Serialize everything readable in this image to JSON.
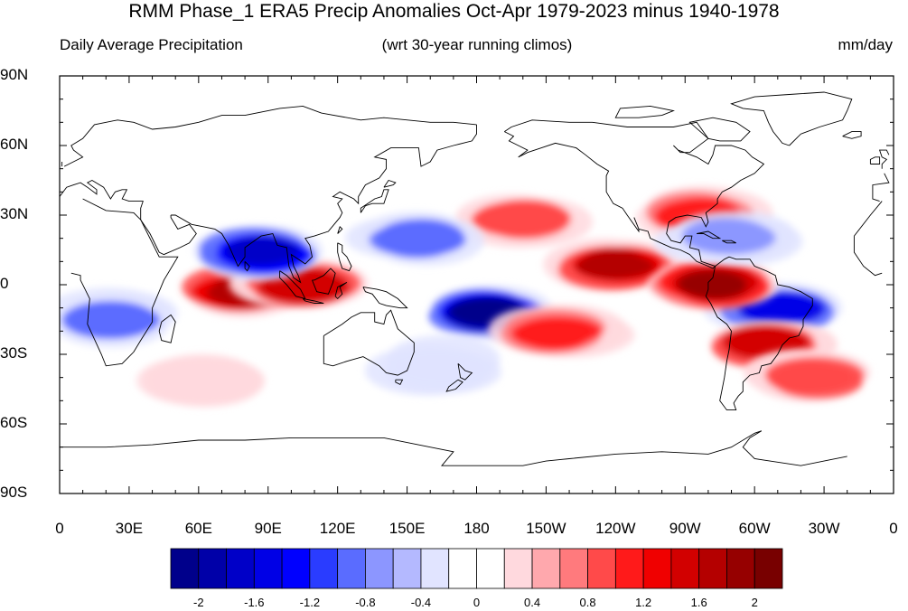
{
  "title": "RMM Phase_1 ERA5 Precip Anomalies Oct-Apr 1979-2023 minus 1940-1978",
  "subtitle_left": "Daily Average Precipitation",
  "subtitle_center": "(wrt 30-year running climos)",
  "subtitle_right": "mm/day",
  "y_labels": [
    "90N",
    "60N",
    "30N",
    "0",
    "30S",
    "60S",
    "90S"
  ],
  "x_labels": [
    "0",
    "30E",
    "60E",
    "90E",
    "120E",
    "150E",
    "180",
    "150W",
    "120W",
    "90W",
    "60W",
    "30W",
    "0"
  ],
  "colorbar": {
    "labels": [
      "-2",
      "-1.6",
      "-1.2",
      "-0.8",
      "-0.4",
      "0",
      "0.4",
      "0.8",
      "1.2",
      "1.6",
      "2"
    ],
    "colors": [
      "#00008b",
      "#0000a8",
      "#0000c8",
      "#0000e6",
      "#0000ff",
      "#2a3cff",
      "#5a6cff",
      "#8c96ff",
      "#b4b9ff",
      "#e1e4ff",
      "#ffffff",
      "#ffffff",
      "#ffd9de",
      "#ffa8ad",
      "#ff7a7d",
      "#ff4a4a",
      "#ff1a1a",
      "#f00000",
      "#d20000",
      "#b40000",
      "#960000",
      "#780000"
    ]
  },
  "map": {
    "projection": "cylindrical-equidistant",
    "lon_range": [
      0,
      360
    ],
    "lat_range": [
      -90,
      90
    ],
    "field": "precipitation anomaly",
    "anomaly_features": [
      {
        "name": "Indian Ocean positive",
        "lon": 80,
        "lat": -3,
        "sign": 1,
        "level": 1.6
      },
      {
        "name": "Maritime Continent positive",
        "lon": 105,
        "lat": 0,
        "sign": 1,
        "level": 1.4
      },
      {
        "name": "Bay of Bengal negative",
        "lon": 88,
        "lat": 14,
        "sign": -1,
        "level": 1.6
      },
      {
        "name": "South Pacific negative",
        "lon": 185,
        "lat": -12,
        "sign": -1,
        "level": 2.0
      },
      {
        "name": "East Pacific ITCZ positive",
        "lon": 240,
        "lat": 8,
        "sign": 1,
        "level": 1.6
      },
      {
        "name": "Brazil negative",
        "lon": 310,
        "lat": -10,
        "sign": -1,
        "level": 1.4
      },
      {
        "name": "Southeast South America positive",
        "lon": 305,
        "lat": -25,
        "sign": 1,
        "level": 1.4
      },
      {
        "name": "Colombia coast positive",
        "lon": 283,
        "lat": 0,
        "sign": 1,
        "level": 1.8
      },
      {
        "name": "North Pacific positive",
        "lon": 200,
        "lat": 28,
        "sign": 1,
        "level": 0.8
      },
      {
        "name": "NW Pacific negative",
        "lon": 155,
        "lat": 20,
        "sign": -1,
        "level": 0.8
      },
      {
        "name": "South Pacific positive band",
        "lon": 215,
        "lat": -20,
        "sign": 1,
        "level": 1.0
      },
      {
        "name": "Southern Africa negative",
        "lon": 25,
        "lat": -15,
        "sign": -1,
        "level": 0.8
      },
      {
        "name": "Southeast US positive",
        "lon": 275,
        "lat": 30,
        "sign": 1,
        "level": 1.0
      },
      {
        "name": "Caribbean negative",
        "lon": 290,
        "lat": 20,
        "sign": -1,
        "level": 0.7
      },
      {
        "name": "South Atlantic positive",
        "lon": 325,
        "lat": -40,
        "sign": 1,
        "level": 0.8
      },
      {
        "name": "Southern Indian Ocean positive",
        "lon": 60,
        "lat": -40,
        "sign": 1,
        "level": 0.6
      },
      {
        "name": "Tasman negative",
        "lon": 160,
        "lat": -35,
        "sign": -1,
        "level": 0.6
      }
    ]
  }
}
